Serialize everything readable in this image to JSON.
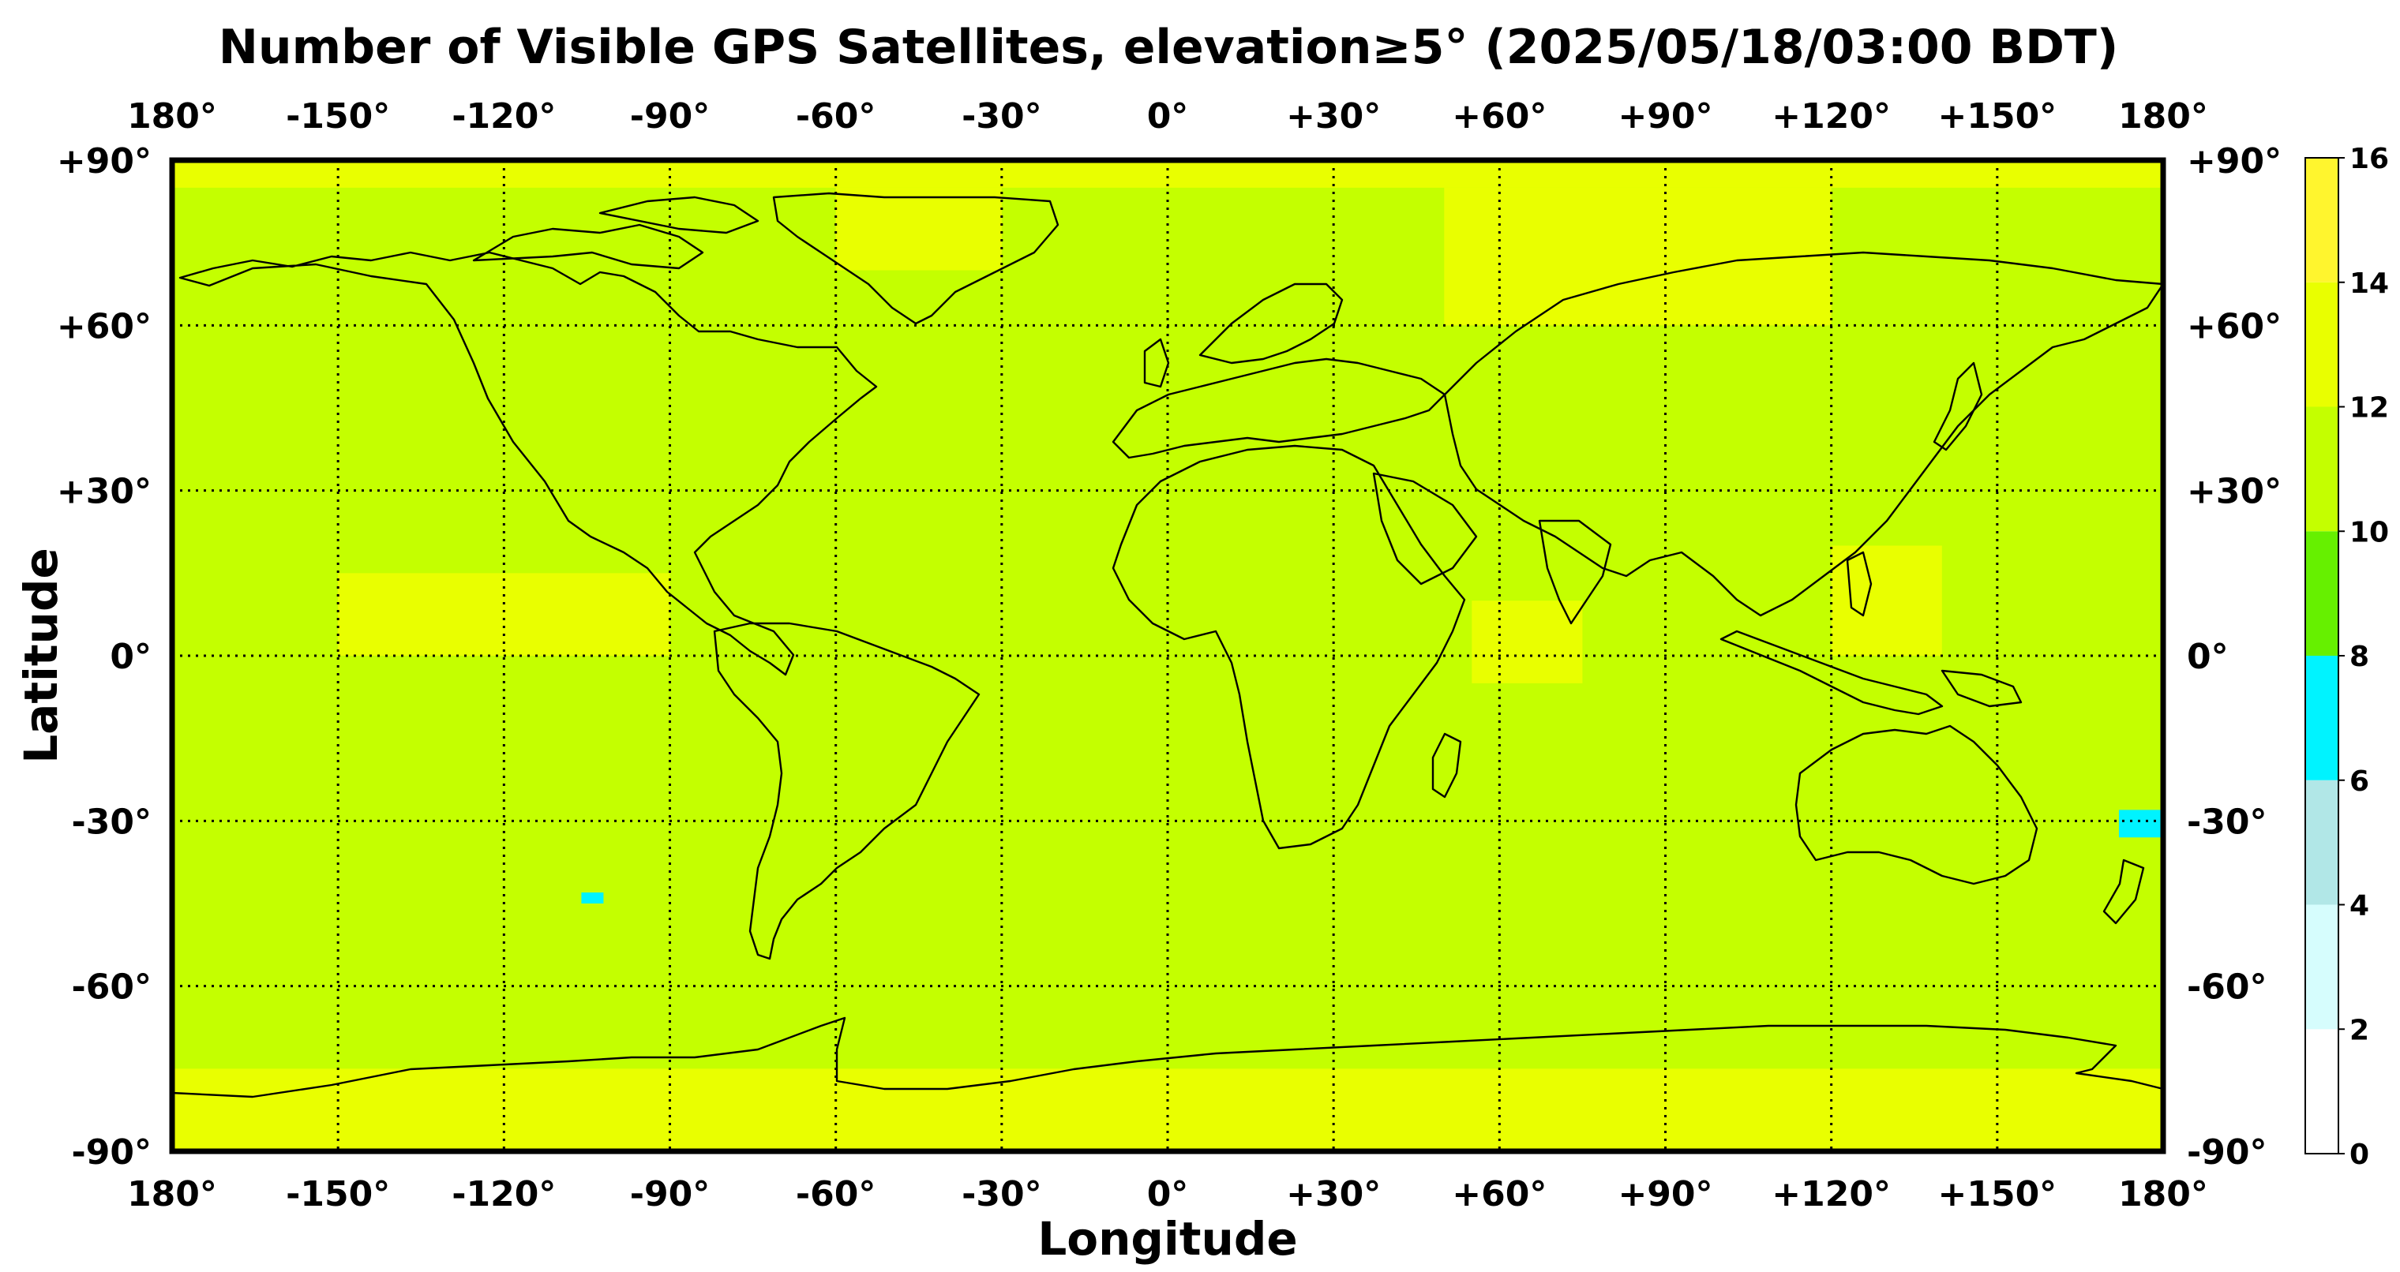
{
  "title": "Number of Visible GPS Satellites, elevation≥5° (2025/05/18/03:00 BDT)",
  "xlabel": "Longitude",
  "ylabel": "Latitude",
  "lon_ticks": [
    "180°",
    "-150°",
    "-120°",
    "-90°",
    "-60°",
    "-30°",
    "0°",
    "+30°",
    "+60°",
    "+90°",
    "+120°",
    "+150°",
    "180°"
  ],
  "lat_ticks": [
    "+90°",
    "+60°",
    "+30°",
    "0°",
    "-30°",
    "-60°",
    "-90°"
  ],
  "colorbar": {
    "tick_labels": [
      "0",
      "2",
      "4",
      "6",
      "8",
      "10",
      "12",
      "14",
      "16"
    ],
    "colors": [
      "#ffffff",
      "#d6fdfd",
      "#b1e7e7",
      "#00f3ff",
      "#66f000",
      "#c4ff00",
      "#e9ff00",
      "#fff52e"
    ]
  },
  "chart_data": {
    "type": "heatmap",
    "title": "Number of Visible GPS Satellites, elevation≥5° (2025/05/18/03:00 BDT)",
    "xlabel": "Longitude",
    "ylabel": "Latitude",
    "xlim": [
      -180,
      180
    ],
    "ylim": [
      -90,
      90
    ],
    "value_range": [
      0,
      16
    ],
    "levels": [
      0,
      2,
      4,
      6,
      8,
      10,
      12,
      14,
      16
    ],
    "grid": true,
    "legend": "colorbar-right",
    "regions": [
      {
        "level": 10,
        "lon": [
          -150,
          -120
        ],
        "lat": [
          40,
          60
        ]
      },
      {
        "level": 10,
        "lon": [
          -110,
          -60
        ],
        "lat": [
          25,
          55
        ]
      },
      {
        "level": 10,
        "lon": [
          -40,
          -10
        ],
        "lat": [
          25,
          55
        ]
      },
      {
        "level": 10,
        "lon": [
          0,
          40
        ],
        "lat": [
          40,
          60
        ]
      },
      {
        "level": 10,
        "lon": [
          60,
          90
        ],
        "lat": [
          35,
          50
        ]
      },
      {
        "level": 10,
        "lon": [
          95,
          145
        ],
        "lat": [
          30,
          50
        ]
      },
      {
        "level": 10,
        "lon": [
          15,
          35
        ],
        "lat": [
          15,
          30
        ]
      },
      {
        "level": 10,
        "lon": [
          -175,
          -130
        ],
        "lat": [
          5,
          20
        ]
      },
      {
        "level": 10,
        "lon": [
          -10,
          10
        ],
        "lat": [
          0,
          10
        ]
      },
      {
        "level": 10,
        "lon": [
          30,
          50
        ],
        "lat": [
          -30,
          -10
        ]
      },
      {
        "level": 10,
        "lon": [
          -180,
          -130
        ],
        "lat": [
          -50,
          -20
        ]
      },
      {
        "level": 10,
        "lon": [
          -110,
          -90
        ],
        "lat": [
          -45,
          -25
        ]
      },
      {
        "level": 10,
        "lon": [
          -90,
          -50
        ],
        "lat": [
          -65,
          -40
        ]
      },
      {
        "level": 10,
        "lon": [
          -50,
          60
        ],
        "lat": [
          -55,
          -25
        ]
      },
      {
        "level": 10,
        "lon": [
          80,
          110
        ],
        "lat": [
          -60,
          -40
        ]
      },
      {
        "level": 10,
        "lon": [
          125,
          155
        ],
        "lat": [
          -55,
          -20
        ]
      },
      {
        "level": 10,
        "lon": [
          155,
          180
        ],
        "lat": [
          -50,
          -30
        ]
      },
      {
        "level": 10,
        "lon": [
          110,
          125
        ],
        "lat": [
          -75,
          -70
        ]
      },
      {
        "level": 12,
        "lon": [
          -150,
          -90
        ],
        "lat": [
          0,
          15
        ]
      },
      {
        "level": 12,
        "lon": [
          55,
          75
        ],
        "lat": [
          -5,
          10
        ]
      },
      {
        "level": 12,
        "lon": [
          120,
          140
        ],
        "lat": [
          0,
          20
        ]
      },
      {
        "level": 12,
        "lon": [
          -180,
          180
        ],
        "lat": [
          -90,
          -75
        ]
      },
      {
        "level": 12,
        "lon": [
          -180,
          180
        ],
        "lat": [
          85,
          90
        ]
      },
      {
        "level": 12,
        "lon": [
          -60,
          -30
        ],
        "lat": [
          70,
          85
        ]
      },
      {
        "level": 12,
        "lon": [
          50,
          120
        ],
        "lat": [
          60,
          85
        ]
      },
      {
        "level": 6,
        "lon": [
          172,
          180
        ],
        "lat": [
          -33,
          -28
        ]
      },
      {
        "level": 6,
        "lon": [
          -106,
          -102
        ],
        "lat": [
          -45,
          -43
        ]
      }
    ]
  }
}
